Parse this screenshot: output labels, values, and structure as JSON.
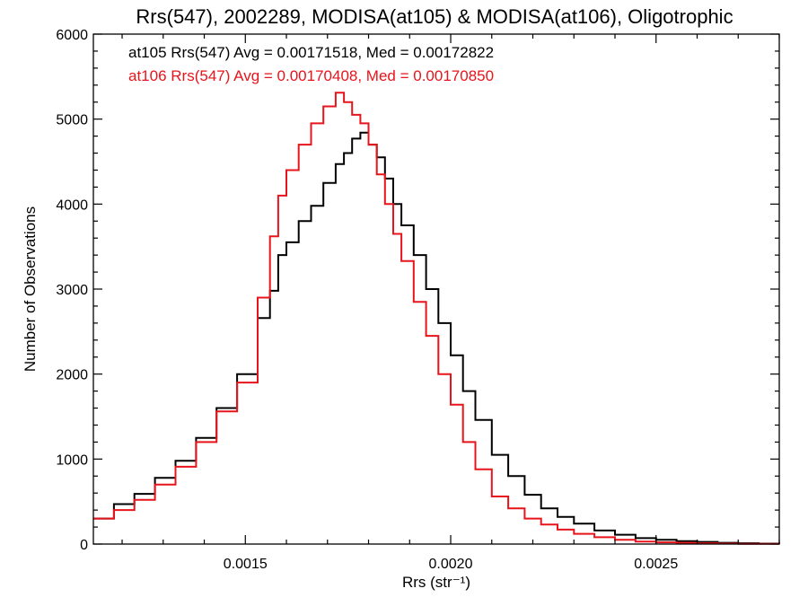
{
  "chart_data": {
    "type": "line",
    "step": true,
    "title": "Rrs(547), 2002289, MODISA(at105) & MODISA(at106), Oligotrophic",
    "xlabel": "Rrs (str⁻¹)",
    "ylabel": "Number of Observations",
    "xlim": [
      0.00113,
      0.0028
    ],
    "ylim": [
      0,
      6000
    ],
    "x_ticks": [
      0.0015,
      0.002,
      0.0025
    ],
    "x_tick_labels": [
      "0.0015",
      "0.0020",
      "0.0025"
    ],
    "y_ticks": [
      0,
      1000,
      2000,
      3000,
      4000,
      5000,
      6000
    ],
    "y_tick_labels": [
      "0",
      "1000",
      "2000",
      "3000",
      "4000",
      "5000",
      "6000"
    ],
    "grid": false,
    "legend_position": "top-left",
    "legend": [
      {
        "text": "at105 Rrs(547) Avg = 0.00171518, Med = 0.00172822",
        "color": "#000000"
      },
      {
        "text": "at106 Rrs(547) Avg = 0.00170408, Med = 0.00170850",
        "color": "#e8141b"
      }
    ],
    "series": [
      {
        "color": "#000000",
        "x": [
          0.00113,
          0.00118,
          0.00123,
          0.00128,
          0.00133,
          0.00138,
          0.00143,
          0.00148,
          0.00153,
          0.00156,
          0.00158,
          0.0016,
          0.00163,
          0.00166,
          0.00169,
          0.00172,
          0.00174,
          0.00176,
          0.00178,
          0.0018,
          0.00182,
          0.00184,
          0.00186,
          0.00188,
          0.00191,
          0.00194,
          0.00197,
          0.002,
          0.00203,
          0.00206,
          0.0021,
          0.00214,
          0.00218,
          0.00222,
          0.00226,
          0.0023,
          0.00235,
          0.0024,
          0.00245,
          0.0025,
          0.00255,
          0.0026,
          0.00265,
          0.0027,
          0.00275,
          0.0028
        ],
        "y": [
          300,
          470,
          590,
          780,
          980,
          1250,
          1600,
          2000,
          2660,
          2980,
          3400,
          3550,
          3800,
          3980,
          4250,
          4470,
          4600,
          4770,
          4840,
          4700,
          4550,
          4300,
          4000,
          3750,
          3400,
          3000,
          2600,
          2220,
          1800,
          1460,
          1050,
          800,
          580,
          420,
          320,
          240,
          160,
          110,
          70,
          50,
          35,
          25,
          15,
          10,
          5,
          3
        ]
      },
      {
        "color": "#e8141b",
        "x": [
          0.00113,
          0.00118,
          0.00123,
          0.00128,
          0.00133,
          0.00138,
          0.00143,
          0.00148,
          0.00153,
          0.00156,
          0.00158,
          0.0016,
          0.00163,
          0.00166,
          0.00169,
          0.00172,
          0.00174,
          0.00176,
          0.00178,
          0.0018,
          0.00182,
          0.00184,
          0.00186,
          0.00188,
          0.00191,
          0.00194,
          0.00197,
          0.002,
          0.00203,
          0.00206,
          0.0021,
          0.00214,
          0.00218,
          0.00222,
          0.00226,
          0.0023,
          0.00235,
          0.0024,
          0.00245,
          0.0025,
          0.00255,
          0.0026,
          0.00265,
          0.0027,
          0.00275,
          0.0028
        ],
        "y": [
          300,
          400,
          520,
          700,
          910,
          1200,
          1560,
          1900,
          2900,
          3620,
          4100,
          4400,
          4700,
          4950,
          5150,
          5310,
          5200,
          5050,
          4950,
          4700,
          4350,
          4000,
          3650,
          3330,
          2850,
          2450,
          2000,
          1640,
          1200,
          880,
          560,
          420,
          300,
          230,
          170,
          120,
          80,
          50,
          30,
          20,
          15,
          10,
          5,
          3,
          2,
          1
        ]
      }
    ]
  }
}
